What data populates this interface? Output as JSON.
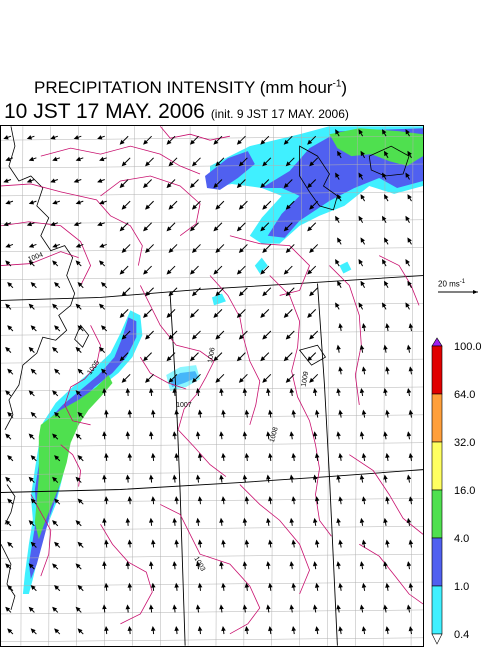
{
  "title": {
    "text": "PRECIPITATION INTENSITY (mm hour",
    "exponent": "-1",
    "close": ")"
  },
  "valid_time": "10 JST 17 MAY. 2006",
  "init_time": "(init. 9 JST 17 MAY. 2006)",
  "reference_vector": {
    "value": "20 ms",
    "exponent": "-1"
  },
  "isobar_labels": [
    "1004",
    "1005",
    "1006",
    "1007",
    "1008",
    "1009",
    "1003"
  ],
  "colorbar": {
    "ticks": [
      "100.0",
      "64.0",
      "32.0",
      "16.0",
      "4.0",
      "1.0",
      "0.4"
    ],
    "colors": [
      "#a020f0",
      "#e00000",
      "#ff9f3a",
      "#ffff60",
      "#4fe04f",
      "#5060f0",
      "#40f0ff",
      "#ffffff"
    ]
  },
  "colors": {
    "isobar": "#c8106e",
    "grid": "#b0b0b0",
    "boundary": "#000000",
    "precip_light": "#40f0ff",
    "precip_moderate": "#5060f0",
    "precip_heavy": "#4fe04f"
  }
}
